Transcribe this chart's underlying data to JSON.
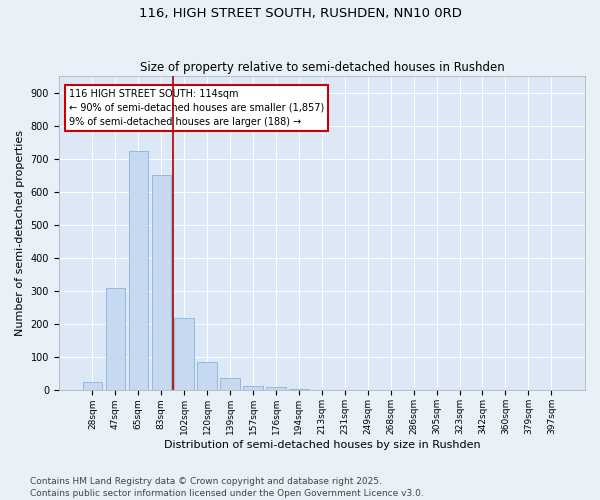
{
  "title": "116, HIGH STREET SOUTH, RUSHDEN, NN10 0RD",
  "subtitle": "Size of property relative to semi-detached houses in Rushden",
  "xlabel": "Distribution of semi-detached houses by size in Rushden",
  "ylabel": "Number of semi-detached properties",
  "categories": [
    "28sqm",
    "47sqm",
    "65sqm",
    "83sqm",
    "102sqm",
    "120sqm",
    "139sqm",
    "157sqm",
    "176sqm",
    "194sqm",
    "213sqm",
    "231sqm",
    "249sqm",
    "268sqm",
    "286sqm",
    "305sqm",
    "323sqm",
    "342sqm",
    "360sqm",
    "379sqm",
    "397sqm"
  ],
  "values": [
    25,
    310,
    725,
    650,
    220,
    85,
    38,
    12,
    10,
    5,
    2,
    0,
    0,
    0,
    0,
    0,
    0,
    0,
    0,
    0,
    0
  ],
  "bar_color": "#c6d9f0",
  "bar_edge_color": "#7aaad8",
  "vline_color": "#aa0000",
  "vline_pos": 3.5,
  "ylim": [
    0,
    950
  ],
  "yticks": [
    0,
    100,
    200,
    300,
    400,
    500,
    600,
    700,
    800,
    900
  ],
  "annotation_title": "116 HIGH STREET SOUTH: 114sqm",
  "annotation_line1": "← 90% of semi-detached houses are smaller (1,857)",
  "annotation_line2": "9% of semi-detached houses are larger (188) →",
  "annotation_box_color": "#ffffff",
  "annotation_box_edge": "#cc0000",
  "bg_color": "#e8f0f8",
  "plot_bg_color": "#dce8f5",
  "grid_color": "#ffffff",
  "footer1": "Contains HM Land Registry data © Crown copyright and database right 2025.",
  "footer2": "Contains public sector information licensed under the Open Government Licence v3.0.",
  "title_fontsize": 9.5,
  "subtitle_fontsize": 8.5,
  "axis_label_fontsize": 8,
  "tick_fontsize": 6.5,
  "annotation_fontsize": 7,
  "footer_fontsize": 6.5
}
